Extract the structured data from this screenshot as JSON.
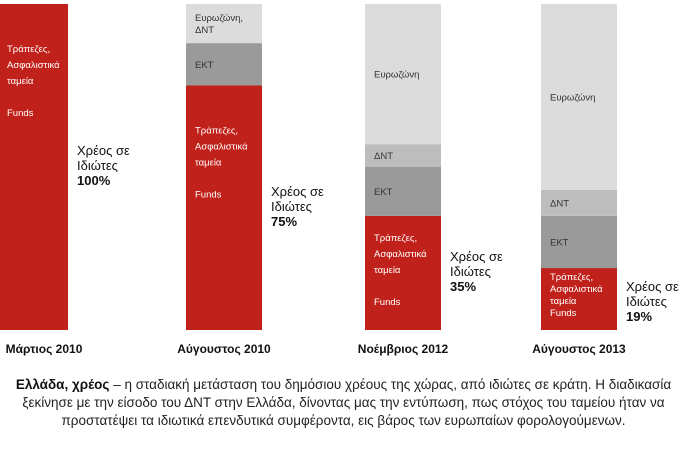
{
  "chart_data": {
    "type": "bar",
    "stacked": true,
    "ylim": [
      0,
      100
    ],
    "categories": [
      "Μάρτιος 2010",
      "Αύγουστος 2010",
      "Νοέμβριος 2012",
      "Αύγουστος 2013"
    ],
    "bars": [
      {
        "category": "Μάρτιος 2010",
        "segments": [
          {
            "name": "private",
            "value": 100,
            "color": "#c0221b",
            "lines": [
              "Τράπεζες,",
              "Ασφαλιστικά",
              "ταμεία",
              "",
              "Funds"
            ]
          }
        ],
        "side_label": [
          "Χρέος σε",
          "Ιδιώτες"
        ],
        "side_value": "100%"
      },
      {
        "category": "Αύγουστος 2010",
        "segments": [
          {
            "name": "private",
            "value": 75,
            "color": "#c0221b",
            "lines": [
              "Τράπεζες,",
              "Ασφαλιστικά",
              "ταμεία",
              "",
              "Funds"
            ]
          },
          {
            "name": "ecb",
            "value": 13,
            "color": "#9a9a9a",
            "lines": [
              "ΕΚΤ"
            ]
          },
          {
            "name": "eurozone_imf",
            "value": 12,
            "color": "#dcdcdc",
            "lines": [
              "Ευρωζώνη,",
              "ΔΝΤ"
            ]
          }
        ],
        "side_label": [
          "Χρέος σε",
          "Ιδιώτες"
        ],
        "side_value": "75%"
      },
      {
        "category": "Νοέμβριος 2012",
        "segments": [
          {
            "name": "private",
            "value": 35,
            "color": "#c0221b",
            "lines": [
              "Τράπεζες,",
              "Ασφαλιστικά",
              "ταμεία",
              "",
              "Funds"
            ]
          },
          {
            "name": "ecb",
            "value": 15,
            "color": "#9a9a9a",
            "lines": [
              "ΕΚΤ"
            ]
          },
          {
            "name": "imf",
            "value": 7,
            "color": "#bdbdbd",
            "lines": [
              "ΔΝΤ"
            ]
          },
          {
            "name": "eurozone",
            "value": 43,
            "color": "#dcdcdc",
            "lines": [
              "Ευρωζώνη"
            ]
          }
        ],
        "side_label": [
          "Χρέος σε",
          "Ιδιώτες"
        ],
        "side_value": "35%"
      },
      {
        "category": "Αύγουστος 2013",
        "segments": [
          {
            "name": "private",
            "value": 19,
            "color": "#c0221b",
            "lines": [
              "Τράπεζες,",
              "Ασφαλιστικά",
              "ταμεία",
              "Funds"
            ]
          },
          {
            "name": "ecb",
            "value": 16,
            "color": "#9a9a9a",
            "lines": [
              "ΕΚΤ"
            ]
          },
          {
            "name": "imf",
            "value": 8,
            "color": "#bdbdbd",
            "lines": [
              "ΔΝΤ"
            ]
          },
          {
            "name": "eurozone",
            "value": 57,
            "color": "#dcdcdc",
            "lines": [
              "Ευρωζώνη"
            ]
          }
        ],
        "side_label": [
          "Χρέος σε",
          "Ιδιώτες"
        ],
        "side_value": "19%"
      }
    ]
  },
  "caption": {
    "head": "Ελλάδα, χρέος",
    "body": " – η σταδιακή μετάσταση του δημόσιου χρέους της χώρας, από ιδιώτες σε κράτη. Η διαδικασία ξεκίνησε με την είσοδο του ΔΝΤ στην Ελλάδα, δίνοντας μας την εντύπωση, πως στόχος του ταμείου ήταν να προστατέψει τα ιδιωτικά επενδυτικά συμφέροντα, εις βάρος των ευρωπαίων φορολογούμενων."
  }
}
